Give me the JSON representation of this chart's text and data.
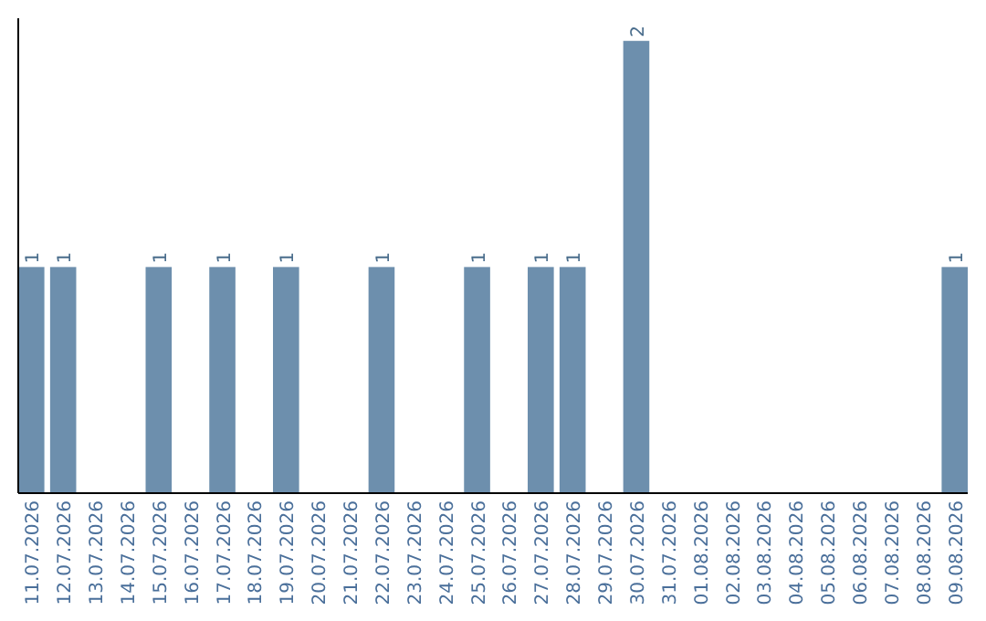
{
  "chart_data": {
    "type": "bar",
    "categories": [
      "11.07.2026",
      "12.07.2026",
      "13.07.2026",
      "14.07.2026",
      "15.07.2026",
      "16.07.2026",
      "17.07.2026",
      "18.07.2026",
      "19.07.2026",
      "20.07.2026",
      "21.07.2026",
      "22.07.2026",
      "23.07.2026",
      "24.07.2026",
      "25.07.2026",
      "26.07.2026",
      "27.07.2026",
      "28.07.2026",
      "29.07.2026",
      "30.07.2026",
      "31.07.2026",
      "01.08.2026",
      "02.08.2026",
      "03.08.2026",
      "04.08.2026",
      "05.08.2026",
      "06.08.2026",
      "07.08.2026",
      "08.08.2026",
      "09.08.2026"
    ],
    "values": [
      1,
      1,
      0,
      0,
      1,
      0,
      1,
      0,
      1,
      0,
      0,
      1,
      0,
      0,
      1,
      0,
      1,
      1,
      0,
      2,
      0,
      0,
      0,
      0,
      0,
      0,
      0,
      0,
      0,
      1
    ],
    "value_labels": [
      "1",
      "1",
      null,
      null,
      "1",
      null,
      "1",
      null,
      "1",
      null,
      null,
      "1",
      null,
      null,
      "1",
      null,
      "1",
      "1",
      null,
      "2",
      null,
      null,
      null,
      null,
      null,
      null,
      null,
      null,
      null,
      "1"
    ],
    "color": "#6d8fad",
    "ylim": [
      0,
      2.1
    ],
    "tick_labels": "x"
  }
}
